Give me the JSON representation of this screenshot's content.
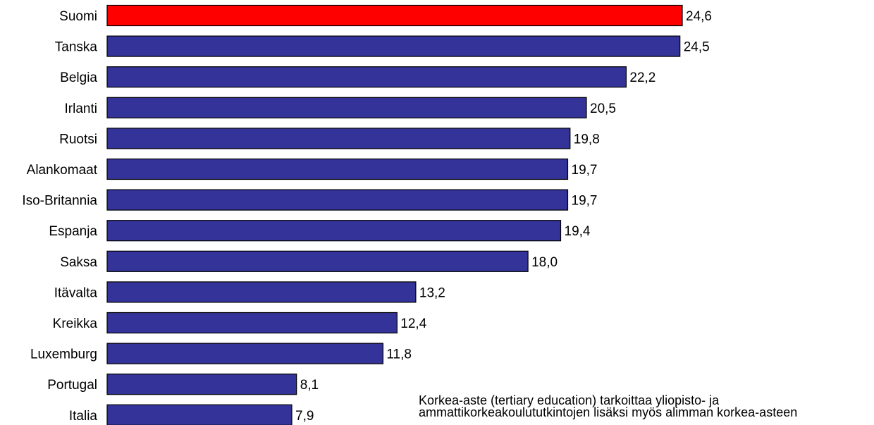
{
  "chart_data": {
    "type": "bar",
    "orientation": "horizontal",
    "categories": [
      "Suomi",
      "Tanska",
      "Belgia",
      "Irlanti",
      "Ruotsi",
      "Alankomaat",
      "Iso-Britannia",
      "Espanja",
      "Saksa",
      "Itävalta",
      "Kreikka",
      "Luxemburg",
      "Portugal",
      "Italia"
    ],
    "values": [
      24.6,
      24.5,
      22.2,
      20.5,
      19.8,
      19.7,
      19.7,
      19.4,
      18.0,
      13.2,
      12.4,
      11.8,
      8.1,
      7.9
    ],
    "value_labels": [
      "24,6",
      "24,5",
      "22,2",
      "20,5",
      "19,8",
      "19,7",
      "19,7",
      "19,4",
      "18,0",
      "13,2",
      "12,4",
      "11,8",
      "8,1",
      "7,9"
    ],
    "highlight_category": "Suomi",
    "colors": {
      "bar": "#333399",
      "highlight": "#ff0000",
      "stroke": "#000000"
    },
    "xlim": [
      0,
      24.6
    ],
    "grid": false,
    "title": "",
    "xlabel": "",
    "ylabel": ""
  },
  "note": {
    "lines": [
      "Korkea-aste (tertiary education) tarkoittaa yliopisto- ja",
      "ammattikorkeakoulututkintojen lisäksi myös alimman korkea-asteen"
    ]
  }
}
